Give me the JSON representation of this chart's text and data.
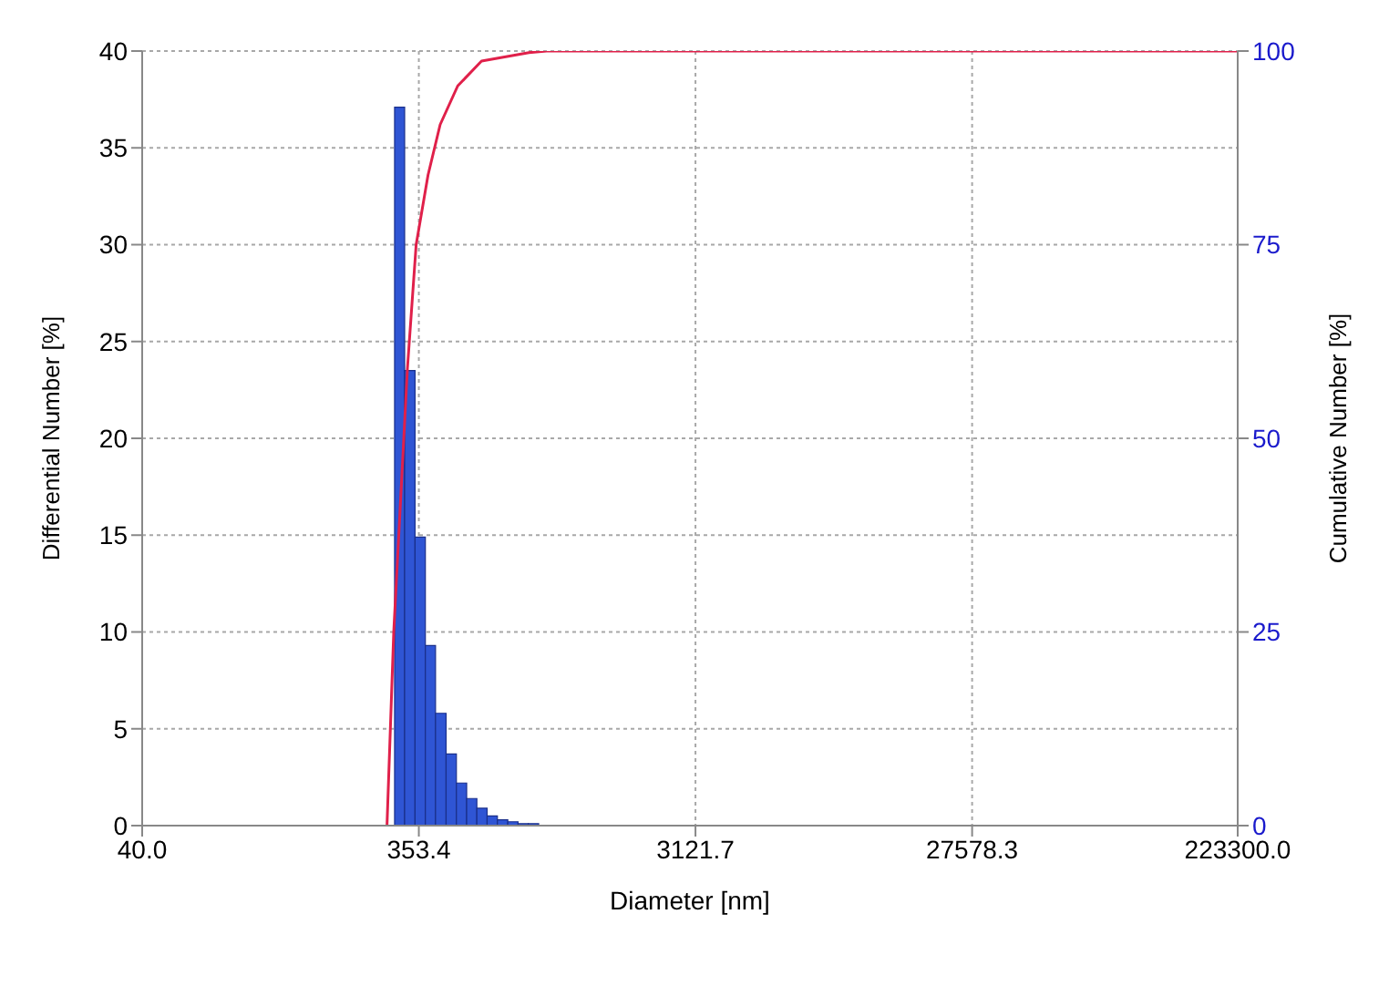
{
  "chart_data": {
    "type": "histogram",
    "xlabel": "Diameter [nm]",
    "ylabel": "Differential Number [%]",
    "y2label": "Cumulative Number [%]",
    "log": "x",
    "grid": true,
    "legend": false,
    "bins": [
      292,
      316,
      343,
      372,
      403,
      438,
      475,
      515,
      558,
      605,
      656,
      712,
      772,
      837,
      908
    ],
    "values": [
      37.1,
      23.5,
      14.9,
      9.3,
      5.8,
      3.7,
      2.2,
      1.4,
      0.9,
      0.5,
      0.3,
      0.2,
      0.1,
      0.1
    ],
    "color": "#2f55d4",
    "series": [
      {
        "type": "line",
        "axis": "y2",
        "color": "#e0204a",
        "x": [
          275,
          290,
          323,
          346,
          380,
          418,
          480,
          579,
          841,
          967,
          223300
        ],
        "values": [
          0,
          25,
          59,
          75,
          84,
          90.5,
          95.5,
          98.7,
          99.8,
          100,
          100
        ]
      }
    ],
    "xlim": [
      40,
      223300
    ],
    "xticks": [
      {
        "value": 40,
        "label": "40.0"
      },
      353.4,
      3121.7,
      27578.3,
      {
        "value": 223300,
        "label": "223300.0"
      }
    ],
    "ylim": [
      0,
      40
    ],
    "yticks": [
      0,
      5,
      10,
      15,
      20,
      25,
      30,
      35,
      40
    ],
    "y2lim": [
      0,
      100
    ],
    "y2ticks": [
      0,
      25,
      50,
      75,
      100
    ]
  }
}
